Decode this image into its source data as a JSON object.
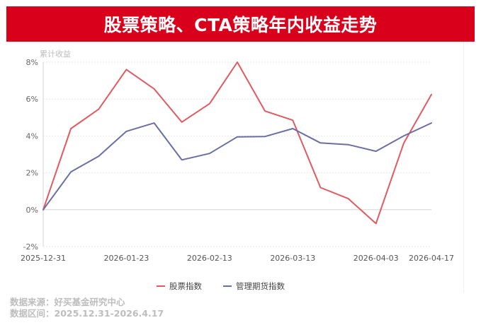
{
  "header": {
    "title": "股票策略、CTA策略年内收益走势"
  },
  "chart_data": {
    "type": "line",
    "ylabel": "累计收益",
    "ylim": [
      -2,
      8
    ],
    "yticks": [
      "8%",
      "6%",
      "4%",
      "2%",
      "0%",
      "-2%"
    ],
    "ytick_values": [
      8,
      6,
      4,
      2,
      0,
      -2
    ],
    "xtick_labels": [
      "2025-12-31",
      "2026-01-23",
      "2026-02-13",
      "2026-03-13",
      "2026-04-03",
      "2026-04-17"
    ],
    "xtick_index": [
      0,
      3,
      6,
      9,
      12,
      14
    ],
    "x": [
      "2025-12-31",
      "2026-01-09",
      "2026-01-16",
      "2026-01-23",
      "2026-01-30",
      "2026-02-06",
      "2026-02-13",
      "2026-02-20",
      "2026-02-27",
      "2026-03-13",
      "2026-03-20",
      "2026-03-27",
      "2026-04-03",
      "2026-04-10",
      "2026-04-17"
    ],
    "series": [
      {
        "name": "股票指数",
        "color": "#e05a5f",
        "values": [
          0.0,
          4.4,
          5.45,
          7.6,
          6.55,
          4.75,
          5.75,
          8.0,
          5.35,
          4.85,
          1.2,
          0.6,
          -0.75,
          3.6,
          6.25
        ]
      },
      {
        "name": "管理期货指数",
        "color": "#6b6ea3",
        "values": [
          0.0,
          2.05,
          2.9,
          4.25,
          4.7,
          2.7,
          3.05,
          3.95,
          3.97,
          4.4,
          3.62,
          3.53,
          3.17,
          4.0,
          4.7
        ]
      }
    ],
    "grid": true,
    "legend_position": "bottom-center"
  },
  "footer": {
    "source": "数据来源：好买基金研究中心",
    "range": "数据区间：2025.12.31-2026.4.17"
  }
}
